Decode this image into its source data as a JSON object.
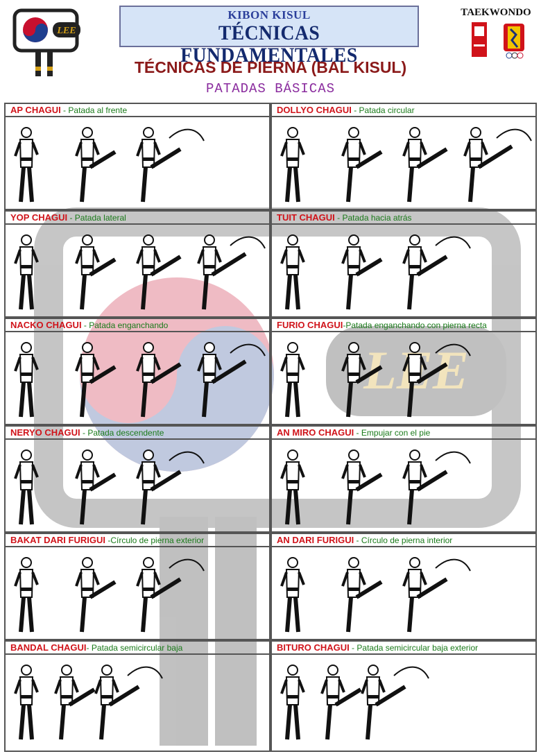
{
  "header": {
    "left_logo_text": "LEE",
    "subtitle": "KIBON KISUL",
    "title": "TÉCNICAS FUNDAMENTALES",
    "right_logo_text": "TAEKWONDO",
    "section_title": "TÉCNICAS DE PIERNA (BAL KISUL)",
    "section_subtitle": "PATADAS BÁSICAS"
  },
  "watermark_text": "LEE",
  "colors": {
    "kick_name": "#d0131a",
    "kick_desc": "#1a7a1a",
    "title_blue": "#142a6e",
    "section_red": "#8b1a1a",
    "section_purple": "#8a2c9e"
  },
  "kicks": [
    {
      "name": "AP CHAGUI",
      "sep": " - ",
      "desc": "Patada al frente",
      "figures": 3
    },
    {
      "name": "DOLLYO CHAGUI",
      "sep": " - ",
      "desc": "Patada circular",
      "figures": 4
    },
    {
      "name": "YOP CHAGUI",
      "sep": " - ",
      "desc": "Patada lateral",
      "figures": 4
    },
    {
      "name": "TUIT CHAGUI",
      "sep": " - ",
      "desc": "Patada hacia atrás",
      "figures": 3
    },
    {
      "name": "NACKO CHAGUI",
      "sep": " - ",
      "desc": "Patada enganchando",
      "figures": 4
    },
    {
      "name": "FURIO CHAGUI",
      "sep": "-",
      "desc": "Patada enganchando con pierna recta",
      "figures": 3
    },
    {
      "name": "NERYO CHAGUI",
      "sep": " - ",
      "desc": "Patada descendente",
      "figures": 3
    },
    {
      "name": "AN MIRO CHAGUI",
      "sep": " - ",
      "desc": "Empujar con el pie",
      "figures": 3
    },
    {
      "name": "BAKAT DARI FURIGUI",
      "sep": " -",
      "desc": "Círculo de pierna exterior",
      "figures": 3
    },
    {
      "name": "AN DARI FURIGUI",
      "sep": " - ",
      "desc": "Círculo de pierna interior",
      "figures": 3
    },
    {
      "name": "BANDAL CHAGUI",
      "sep": "- ",
      "desc": "Patada semicircular baja",
      "figures": 3
    },
    {
      "name": "BITURO CHAGUI",
      "sep": " - ",
      "desc": "Patada semicircular baja exterior",
      "figures": 3
    }
  ]
}
